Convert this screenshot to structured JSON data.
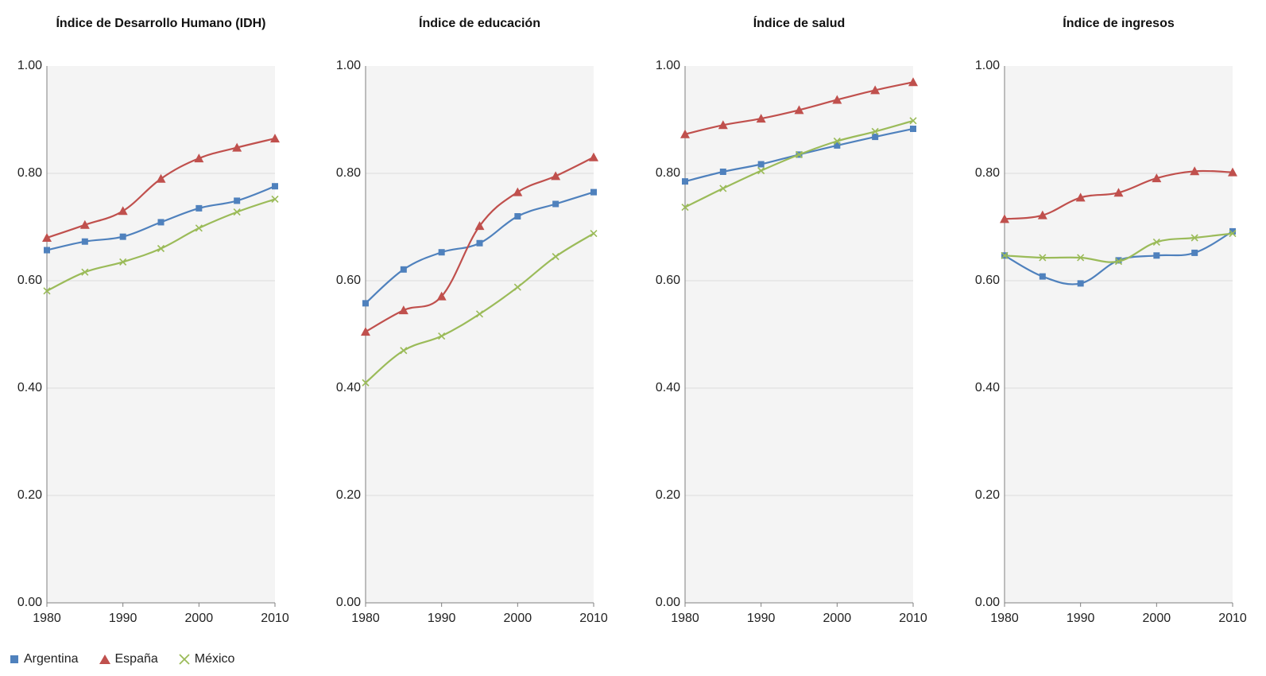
{
  "colors": {
    "argentina": "#4f81bd",
    "espana": "#c0504d",
    "mexico": "#9bbb59",
    "plot_background": "#f4f4f4",
    "gridline": "#dcdcdc",
    "axis": "#7f7f7f"
  },
  "legend": {
    "placement": "bottom-left",
    "items": [
      {
        "label": "Argentina",
        "marker": "square",
        "color": "#4f81bd"
      },
      {
        "label": "España",
        "marker": "triangle",
        "color": "#c0504d"
      },
      {
        "label": "México",
        "marker": "x",
        "color": "#9bbb59"
      }
    ]
  },
  "chart_data": [
    {
      "type": "line",
      "title": "Índice de Desarrollo Humano (IDH)",
      "x": [
        1980,
        1985,
        1990,
        1995,
        2000,
        2005,
        2010
      ],
      "x_ticks": [
        1980,
        1990,
        2000,
        2010
      ],
      "y_ticks": [
        "0.00",
        "0.20",
        "0.40",
        "0.60",
        "0.80",
        "1.00"
      ],
      "ylim": [
        0,
        1
      ],
      "grid": true,
      "series": [
        {
          "name": "Argentina",
          "values": [
            0.657,
            0.673,
            0.682,
            0.709,
            0.735,
            0.749,
            0.776
          ]
        },
        {
          "name": "España",
          "values": [
            0.68,
            0.704,
            0.73,
            0.79,
            0.828,
            0.848,
            0.865
          ]
        },
        {
          "name": "México",
          "values": [
            0.581,
            0.616,
            0.635,
            0.66,
            0.698,
            0.728,
            0.752
          ]
        }
      ]
    },
    {
      "type": "line",
      "title": "Índice de educación",
      "x": [
        1980,
        1985,
        1990,
        1995,
        2000,
        2005,
        2010
      ],
      "x_ticks": [
        1980,
        1990,
        2000,
        2010
      ],
      "y_ticks": [
        "0.00",
        "0.20",
        "0.40",
        "0.60",
        "0.80",
        "1.00"
      ],
      "ylim": [
        0,
        1
      ],
      "grid": true,
      "series": [
        {
          "name": "Argentina",
          "values": [
            0.558,
            0.621,
            0.653,
            0.67,
            0.72,
            0.743,
            0.765
          ]
        },
        {
          "name": "España",
          "values": [
            0.505,
            0.545,
            0.571,
            0.702,
            0.765,
            0.795,
            0.83
          ]
        },
        {
          "name": "México",
          "values": [
            0.41,
            0.47,
            0.497,
            0.538,
            0.588,
            0.645,
            0.688
          ]
        }
      ]
    },
    {
      "type": "line",
      "title": "Índice de salud",
      "x": [
        1980,
        1985,
        1990,
        1995,
        2000,
        2005,
        2010
      ],
      "x_ticks": [
        1980,
        1990,
        2000,
        2010
      ],
      "y_ticks": [
        "0.00",
        "0.20",
        "0.40",
        "0.60",
        "0.80",
        "1.00"
      ],
      "ylim": [
        0,
        1
      ],
      "grid": true,
      "series": [
        {
          "name": "Argentina",
          "values": [
            0.785,
            0.803,
            0.817,
            0.835,
            0.852,
            0.868,
            0.883
          ]
        },
        {
          "name": "España",
          "values": [
            0.873,
            0.89,
            0.902,
            0.918,
            0.937,
            0.955,
            0.97
          ]
        },
        {
          "name": "México",
          "values": [
            0.737,
            0.772,
            0.805,
            0.835,
            0.86,
            0.878,
            0.898
          ]
        }
      ]
    },
    {
      "type": "line",
      "title": "Índice de ingresos",
      "x": [
        1980,
        1985,
        1990,
        1995,
        2000,
        2005,
        2010
      ],
      "x_ticks": [
        1980,
        1990,
        2000,
        2010
      ],
      "y_ticks": [
        "0.00",
        "0.20",
        "0.40",
        "0.60",
        "0.80",
        "1.00"
      ],
      "ylim": [
        0,
        1
      ],
      "grid": true,
      "series": [
        {
          "name": "Argentina",
          "values": [
            0.647,
            0.608,
            0.595,
            0.638,
            0.647,
            0.652,
            0.692
          ]
        },
        {
          "name": "España",
          "values": [
            0.715,
            0.722,
            0.755,
            0.764,
            0.791,
            0.804,
            0.802
          ]
        },
        {
          "name": "México",
          "values": [
            0.647,
            0.643,
            0.643,
            0.636,
            0.672,
            0.68,
            0.688
          ]
        }
      ]
    }
  ]
}
